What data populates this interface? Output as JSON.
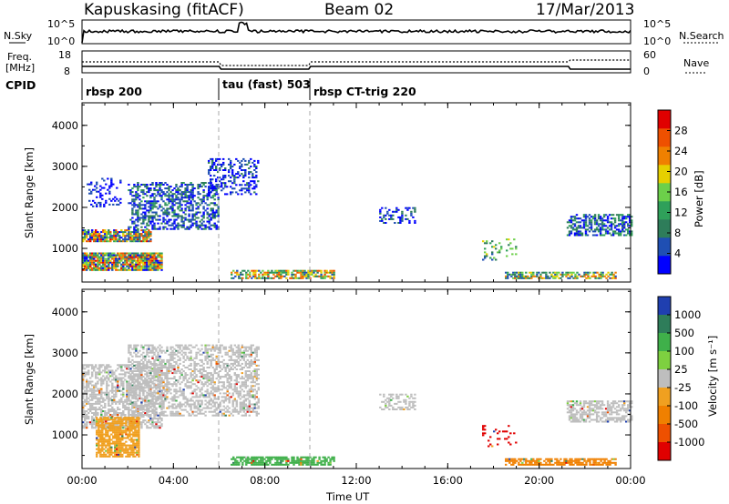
{
  "header": {
    "station": "Kapuskasing (fitACF)",
    "beam": "Beam 02",
    "date": "17/Mar/2013"
  },
  "summary_panels": {
    "nsky_label": "N.Sky",
    "nsky_ticks": [
      "10^5",
      "10^0"
    ],
    "nsearch_label": "N.Search",
    "nsearch_ticks": [
      "10^5",
      "10^0"
    ],
    "freq_label": "Freq.",
    "freq_unit": "[MHz]",
    "freq_ticks": [
      "18",
      "8"
    ],
    "nave_label": "Nave",
    "nave_ticks": [
      "60",
      "0"
    ],
    "cpid_label": "CPID",
    "cpid_segments": [
      {
        "label": "rbsp 200",
        "start": 0,
        "end": 6
      },
      {
        "label": "tau (fast) 503",
        "start": 6,
        "end": 10
      },
      {
        "label": "rbsp CT-trig 220",
        "start": 10,
        "end": 24
      }
    ]
  },
  "chart_data": [
    {
      "type": "heatmap",
      "panel": "power",
      "ylabel": "Slant Range [km]",
      "xlabel": "",
      "x_ticks": [
        "00:00",
        "04:00",
        "08:00",
        "12:00",
        "16:00",
        "20:00",
        "00:00"
      ],
      "y_ticks": [
        "1000",
        "2000",
        "3000",
        "4000"
      ],
      "xlim": [
        0,
        24
      ],
      "ylim": [
        180,
        4550
      ],
      "colorbar": {
        "label": "Power [dB]",
        "ticks": [
          "4",
          "8",
          "12",
          "16",
          "20",
          "24",
          "28"
        ],
        "range": [
          0,
          32
        ],
        "colors": [
          "#0000ff",
          "#1f4fb3",
          "#2e7d5a",
          "#2fa05a",
          "#6cd04a",
          "#e6d000",
          "#f08000",
          "#ee5000",
          "#e00000"
        ]
      },
      "regions": [
        {
          "t0": 0.2,
          "t1": 1.7,
          "r0": 2000,
          "r1": 2700,
          "density": 0.3,
          "min": 0,
          "max": 6
        },
        {
          "t0": 0.0,
          "t1": 3.0,
          "r0": 1150,
          "r1": 1450,
          "density": 0.8,
          "min": 0,
          "max": 30
        },
        {
          "t0": 0.0,
          "t1": 3.5,
          "r0": 450,
          "r1": 900,
          "density": 0.9,
          "min": 0,
          "max": 30
        },
        {
          "t0": 2.0,
          "t1": 6.0,
          "r0": 1450,
          "r1": 2600,
          "density": 0.5,
          "min": 0,
          "max": 12
        },
        {
          "t0": 5.5,
          "t1": 7.7,
          "r0": 2300,
          "r1": 3200,
          "density": 0.4,
          "min": 0,
          "max": 8
        },
        {
          "t0": 6.5,
          "t1": 11.0,
          "r0": 250,
          "r1": 450,
          "density": 0.7,
          "min": 4,
          "max": 28
        },
        {
          "t0": 13.0,
          "t1": 14.6,
          "r0": 1600,
          "r1": 2000,
          "density": 0.4,
          "min": 0,
          "max": 10
        },
        {
          "t0": 18.5,
          "t1": 23.3,
          "r0": 250,
          "r1": 430,
          "density": 0.7,
          "min": 4,
          "max": 26
        },
        {
          "t0": 21.2,
          "t1": 24.0,
          "r0": 1300,
          "r1": 1800,
          "density": 0.6,
          "min": 0,
          "max": 14
        },
        {
          "t0": 17.5,
          "t1": 19.0,
          "r0": 700,
          "r1": 1200,
          "density": 0.15,
          "min": 6,
          "max": 20
        }
      ]
    },
    {
      "type": "heatmap",
      "panel": "velocity",
      "ylabel": "Slant Range [km]",
      "xlabel": "Time UT",
      "x_ticks": [
        "00:00",
        "04:00",
        "08:00",
        "12:00",
        "16:00",
        "20:00",
        "00:00"
      ],
      "y_ticks": [
        "1000",
        "2000",
        "3000",
        "4000"
      ],
      "xlim": [
        0,
        24
      ],
      "ylim": [
        180,
        4550
      ],
      "colorbar": {
        "label": "Velocity [m s⁻¹]",
        "ticks": [
          "1000",
          "500",
          "100",
          "25",
          "-25",
          "-100",
          "-500",
          "-1000"
        ],
        "colors": [
          "#1f3fb0",
          "#2e7d5a",
          "#3fb04a",
          "#7ed040",
          "#bebebe",
          "#f0a020",
          "#f08000",
          "#ee5000",
          "#e00000"
        ]
      },
      "regions": [
        {
          "t0": 0.0,
          "t1": 3.5,
          "r0": 1150,
          "r1": 2700,
          "density": 0.6,
          "color": "#bebebe"
        },
        {
          "t0": 0.6,
          "t1": 2.5,
          "r0": 450,
          "r1": 1400,
          "density": 0.8,
          "color": "#f0a020"
        },
        {
          "t0": 2.0,
          "t1": 7.7,
          "r0": 1450,
          "r1": 3200,
          "density": 0.5,
          "color": "#bebebe"
        },
        {
          "t0": 6.5,
          "t1": 11.0,
          "r0": 250,
          "r1": 450,
          "density": 0.7,
          "color": "#3fb04a"
        },
        {
          "t0": 13.0,
          "t1": 14.6,
          "r0": 1600,
          "r1": 2000,
          "density": 0.4,
          "color": "#bebebe"
        },
        {
          "t0": 18.5,
          "t1": 23.3,
          "r0": 250,
          "r1": 430,
          "density": 0.7,
          "color": "#f08000"
        },
        {
          "t0": 21.2,
          "t1": 24.0,
          "r0": 1300,
          "r1": 1800,
          "density": 0.6,
          "color": "#bebebe"
        },
        {
          "t0": 17.5,
          "t1": 19.0,
          "r0": 700,
          "r1": 1200,
          "density": 0.15,
          "color": "#e00000"
        }
      ]
    }
  ]
}
